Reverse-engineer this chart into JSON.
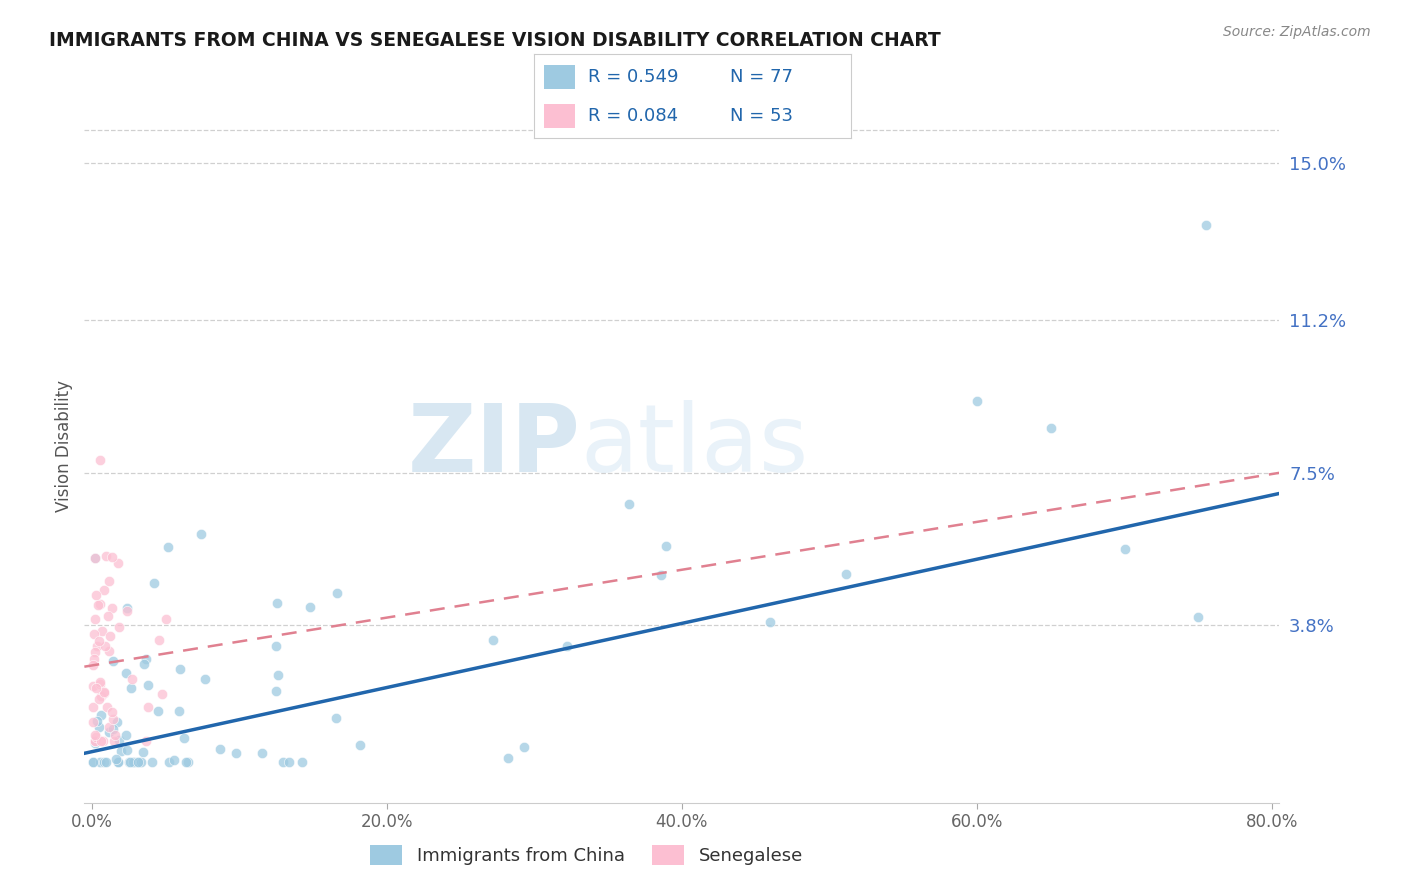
{
  "title": "IMMIGRANTS FROM CHINA VS SENEGALESE VISION DISABILITY CORRELATION CHART",
  "source": "Source: ZipAtlas.com",
  "ylabel": "Vision Disability",
  "xlim": [
    -0.005,
    0.805
  ],
  "ylim": [
    -0.005,
    0.168
  ],
  "yticks": [
    0.038,
    0.075,
    0.112,
    0.15
  ],
  "ytick_labels": [
    "3.8%",
    "7.5%",
    "11.2%",
    "15.0%"
  ],
  "xticks": [
    0.0,
    0.2,
    0.4,
    0.6,
    0.8
  ],
  "xtick_labels": [
    "0.0%",
    "20.0%",
    "40.0%",
    "60.0%",
    "80.0%"
  ],
  "color_blue": "#9ecae1",
  "color_pink": "#fcbfd2",
  "color_line_blue": "#2166ac",
  "color_line_pink": "#e08090",
  "background_color": "#ffffff",
  "china_line_x0": 0.0,
  "china_line_y0": 0.007,
  "china_line_x1": 0.8,
  "china_line_y1": 0.07,
  "senegal_line_x0": 0.0,
  "senegal_line_y0": 0.028,
  "senegal_line_x1": 0.8,
  "senegal_line_y1": 0.075
}
